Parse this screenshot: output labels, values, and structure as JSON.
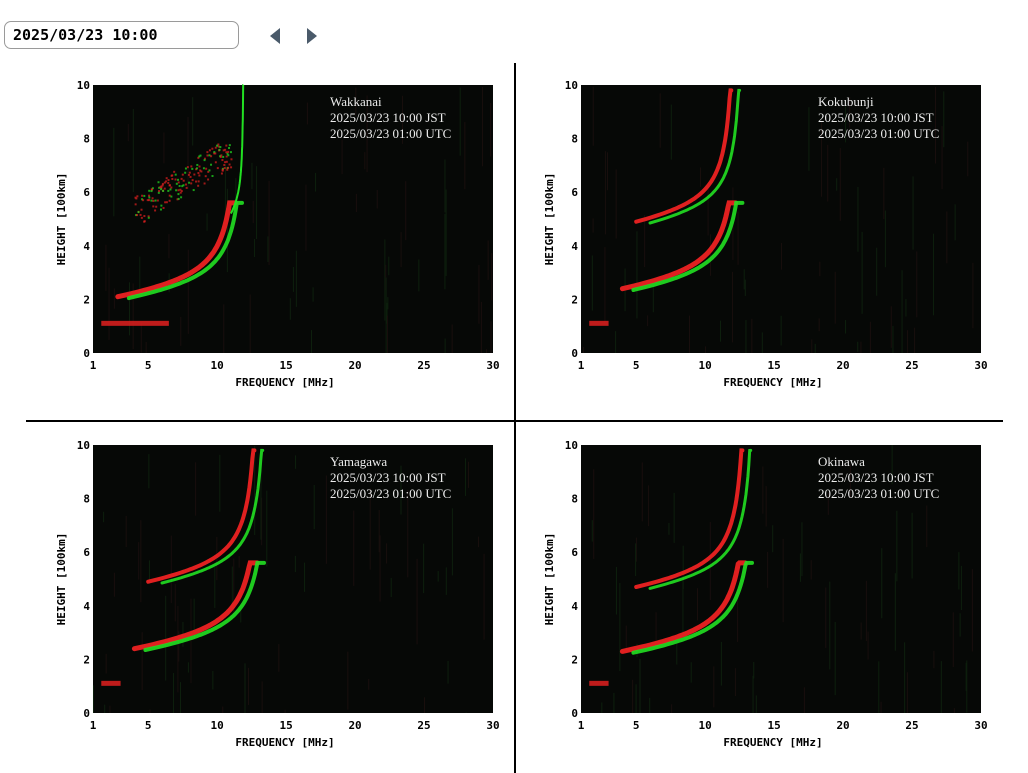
{
  "datetime": {
    "value": "2025/03/23 10:00"
  },
  "nav": {
    "prev_icon": "caret-left-icon",
    "next_icon": "caret-right-icon",
    "color": "#4a5a6a"
  },
  "axis": {
    "xlabel": "FREQUENCY [MHz]",
    "ylabel": "HEIGHT [100km]",
    "x_ticks": [
      "1",
      "5",
      "10",
      "15",
      "20",
      "25",
      "30"
    ],
    "y_ticks": [
      "0",
      "2",
      "4",
      "6",
      "8",
      "10"
    ],
    "xlim": [
      1,
      30
    ],
    "ylim": [
      0,
      10
    ]
  },
  "colors": {
    "o_trace": "#e02020",
    "x_trace": "#22e022",
    "background": "#060806"
  },
  "stations": [
    {
      "name": "Wakkanai",
      "jst": "2025/03/23 10:00 JST",
      "utc": "2025/03/23 01:00 UTC",
      "f1_cutoff": 11.3,
      "f1_base": 2.1,
      "f2_cutoff": 11.8,
      "f2_base": 4.2,
      "diffuse": true
    },
    {
      "name": "Kokubunji",
      "jst": "2025/03/23 10:00 JST",
      "utc": "2025/03/23 01:00 UTC",
      "f1_cutoff": 12.2,
      "f1_base": 2.4,
      "f2_cutoff": 12.5,
      "f2_base": 4.9,
      "diffuse": false
    },
    {
      "name": "Yamagawa",
      "jst": "2025/03/23 10:00 JST",
      "utc": "2025/03/23 01:00 UTC",
      "f1_cutoff": 12.9,
      "f1_base": 2.4,
      "f2_cutoff": 13.3,
      "f2_base": 4.9,
      "diffuse": false
    },
    {
      "name": "Okinawa",
      "jst": "2025/03/23 10:00 JST",
      "utc": "2025/03/23 01:00 UTC",
      "f1_cutoff": 12.9,
      "f1_base": 2.3,
      "f2_cutoff": 13.3,
      "f2_base": 4.7,
      "diffuse": false
    }
  ]
}
